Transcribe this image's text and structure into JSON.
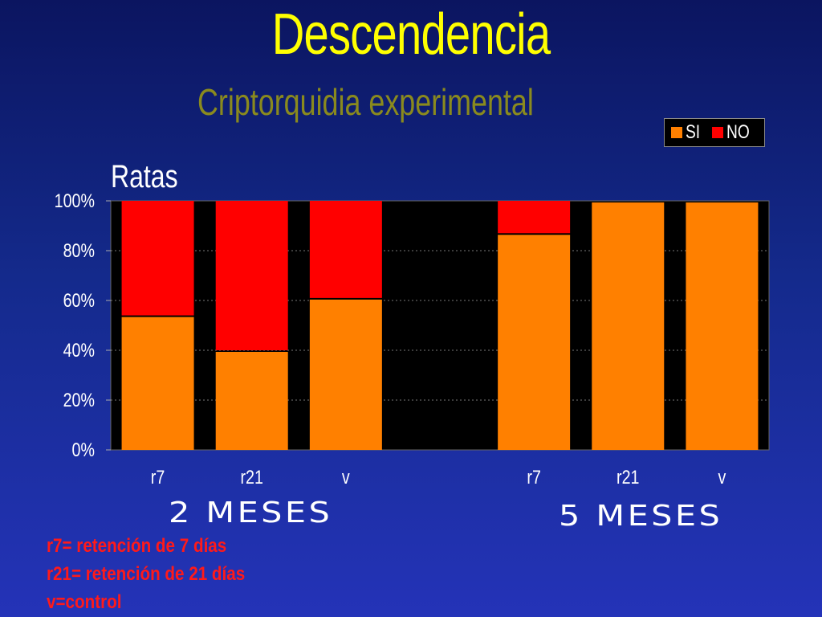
{
  "title": "Descendencia",
  "subtitle": "Criptorquidia experimental",
  "ylabel_box": "Ratas",
  "legend": [
    {
      "label": "SI",
      "color": "#ff8000"
    },
    {
      "label": "NO",
      "color": "#ff0000"
    }
  ],
  "groups": [
    "2 MESES",
    "5 MESES"
  ],
  "notes": [
    "r7= retención de 7 días",
    "r21= retención de 21 días",
    "v=control"
  ],
  "chart_data": {
    "type": "bar",
    "stacked": true,
    "percent": true,
    "categories": [
      "r7",
      "r21",
      "v",
      "",
      "r7",
      "r21",
      "v"
    ],
    "series": [
      {
        "name": "SI",
        "values": [
          54,
          40,
          61,
          null,
          87,
          100,
          100
        ],
        "color": "#ff8000"
      },
      {
        "name": "NO",
        "values": [
          46,
          60,
          39,
          null,
          13,
          0,
          0
        ],
        "color": "#ff0000"
      }
    ],
    "ylim": [
      0,
      100
    ],
    "yticks": [
      "0%",
      "20%",
      "40%",
      "60%",
      "80%",
      "100%"
    ],
    "grid": true,
    "legend_position": "top-right",
    "plot_background": "#000000"
  }
}
